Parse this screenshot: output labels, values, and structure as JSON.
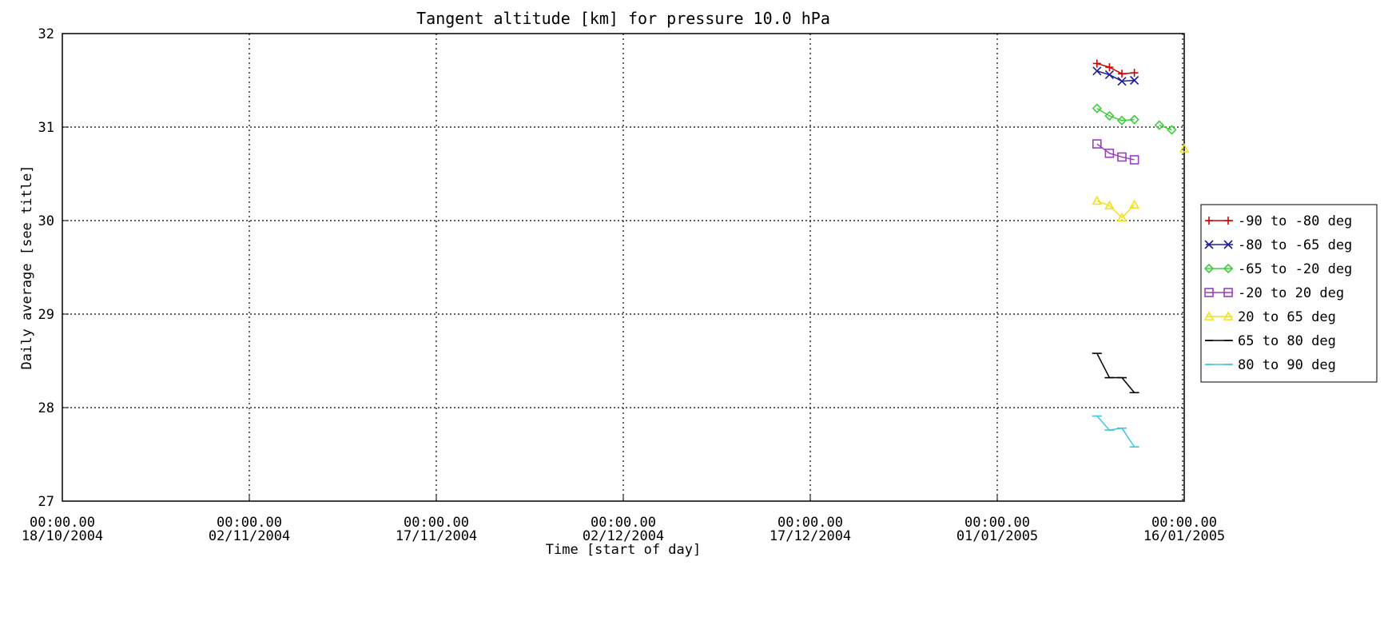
{
  "chart_data": {
    "type": "line",
    "title": "Tangent altitude [km] for pressure 10.0 hPa",
    "xlabel": "Time [start of day]",
    "ylabel": "Daily average [see title]",
    "x_ticks": [
      {
        "line1": "00:00.00",
        "line2": "18/10/2004",
        "day": 0
      },
      {
        "line1": "00:00.00",
        "line2": "02/11/2004",
        "day": 15
      },
      {
        "line1": "00:00.00",
        "line2": "17/11/2004",
        "day": 30
      },
      {
        "line1": "00:00.00",
        "line2": "02/12/2004",
        "day": 45
      },
      {
        "line1": "00:00.00",
        "line2": "17/12/2004",
        "day": 60
      },
      {
        "line1": "00:00.00",
        "line2": "01/01/2005",
        "day": 75
      },
      {
        "line1": "00:00.00",
        "line2": "16/01/2005",
        "day": 90
      }
    ],
    "y_ticks": [
      27,
      28,
      29,
      30,
      31,
      32
    ],
    "xlim": [
      0,
      90
    ],
    "ylim": [
      27,
      32
    ],
    "grid": true,
    "legend_position": "right",
    "series": [
      {
        "name": "-90 to -80 deg",
        "color": "#d40000",
        "marker": "plus",
        "x": [
          83,
          84,
          85,
          86
        ],
        "y": [
          31.68,
          31.64,
          31.57,
          31.58
        ]
      },
      {
        "name": "-80 to -65 deg",
        "color": "#1e1e9c",
        "marker": "cross",
        "x": [
          83,
          84,
          85,
          86
        ],
        "y": [
          31.6,
          31.56,
          31.49,
          31.5
        ]
      },
      {
        "name": "-65 to -20 deg",
        "color": "#3fcc3f",
        "marker": "diamond",
        "x": [
          83,
          84,
          85,
          86,
          null,
          88,
          89
        ],
        "y": [
          31.2,
          31.12,
          31.07,
          31.08,
          null,
          31.02,
          30.97
        ]
      },
      {
        "name": "-20 to 20 deg",
        "color": "#9b3fc1",
        "marker": "square",
        "x": [
          83,
          84,
          85,
          86
        ],
        "y": [
          30.82,
          30.72,
          30.68,
          30.65
        ]
      },
      {
        "name": "20 to 65 deg",
        "color": "#f2e21a",
        "marker": "triangle",
        "x": [
          83,
          84,
          85,
          86,
          null,
          90
        ],
        "y": [
          30.21,
          30.16,
          30.03,
          30.17,
          null,
          30.77
        ]
      },
      {
        "name": "65 to 80 deg",
        "color": "#000000",
        "marker": "hbar",
        "x": [
          83,
          84,
          85,
          86
        ],
        "y": [
          28.58,
          28.32,
          28.32,
          28.16
        ]
      },
      {
        "name": "80 to 90 deg",
        "color": "#3fc4e0",
        "marker": "hbar",
        "x": [
          83,
          84,
          85,
          86
        ],
        "y": [
          27.91,
          27.76,
          27.78,
          27.58
        ]
      }
    ]
  }
}
